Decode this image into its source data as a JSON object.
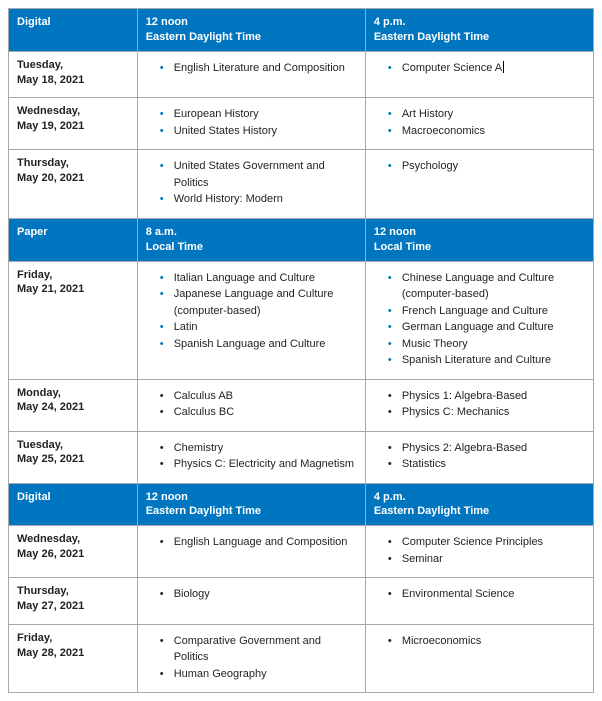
{
  "colors": {
    "header_bg": "#0076c0",
    "header_text": "#ffffff",
    "border": "#a6a8ab",
    "body_text": "#231f20",
    "bullet_blue": "#0076c0",
    "bullet_black": "#231f20",
    "background": "#ffffff"
  },
  "typography": {
    "font_family": "Arial, Helvetica, sans-serif",
    "body_fontsize_pt": 8,
    "header_fontsize_pt": 8,
    "header_weight": "bold",
    "date_weight": "bold"
  },
  "layout": {
    "col_widths_pct": [
      22,
      39,
      39
    ]
  },
  "sections": [
    {
      "format_label": "Digital",
      "slot1": {
        "time": "12 noon",
        "tz": "Eastern Daylight Time"
      },
      "slot2": {
        "time": "4 p.m.",
        "tz": "Eastern Daylight Time"
      },
      "bullet_style": "blue",
      "rows": [
        {
          "dow": "Tuesday,",
          "date": "May 18, 2021",
          "slot1_items": [
            "English Literature and Composition"
          ],
          "slot2_items": [
            "Computer Science A"
          ],
          "slot2_cursor_after_first": true
        },
        {
          "dow": "Wednesday,",
          "date": "May 19, 2021",
          "slot1_items": [
            "European History",
            "United States History"
          ],
          "slot2_items": [
            "Art History",
            "Macroeconomics"
          ]
        },
        {
          "dow": "Thursday,",
          "date": "May 20, 2021",
          "slot1_items": [
            "United States Government and Politics",
            "World History: Modern"
          ],
          "slot2_items": [
            "Psychology"
          ]
        }
      ]
    },
    {
      "format_label": "Paper",
      "slot1": {
        "time": "8 a.m.",
        "tz": "Local Time"
      },
      "slot2": {
        "time": "12 noon",
        "tz": "Local Time"
      },
      "rows": [
        {
          "dow": "Friday,",
          "date": "May 21, 2021",
          "bullet_style": "blue",
          "slot1_items": [
            "Italian Language and Culture",
            "Japanese Language and Culture (computer-based)",
            "Latin",
            "Spanish Language and Culture"
          ],
          "slot2_items": [
            "Chinese Language and Culture (computer-based)",
            "French Language and Culture",
            "German Language and Culture",
            "Music Theory",
            "Spanish Literature and Culture"
          ]
        },
        {
          "dow": "Monday,",
          "date": "May 24, 2021",
          "bullet_style": "black",
          "slot1_items": [
            "Calculus AB",
            "Calculus BC"
          ],
          "slot2_items": [
            "Physics 1: Algebra-Based",
            "Physics C: Mechanics"
          ]
        },
        {
          "dow": "Tuesday,",
          "date": "May 25, 2021",
          "bullet_style": "black",
          "slot1_items": [
            "Chemistry",
            "Physics C: Electricity and Magnetism"
          ],
          "slot2_items": [
            "Physics 2: Algebra-Based",
            "Statistics"
          ]
        }
      ]
    },
    {
      "format_label": "Digital",
      "slot1": {
        "time": "12 noon",
        "tz": "Eastern Daylight Time"
      },
      "slot2": {
        "time": "4 p.m.",
        "tz": "Eastern Daylight Time"
      },
      "bullet_style": "black",
      "rows": [
        {
          "dow": "Wednesday,",
          "date": "May 26, 2021",
          "slot1_items": [
            "English Language and Composition"
          ],
          "slot2_items": [
            "Computer Science Principles",
            "Seminar"
          ]
        },
        {
          "dow": "Thursday,",
          "date": "May 27, 2021",
          "slot1_items": [
            "Biology"
          ],
          "slot2_items": [
            "Environmental Science"
          ]
        },
        {
          "dow": "Friday,",
          "date": "May 28, 2021",
          "slot1_items": [
            "Comparative Government and Politics",
            "Human Geography"
          ],
          "slot2_items": [
            "Microeconomics"
          ]
        }
      ]
    }
  ]
}
